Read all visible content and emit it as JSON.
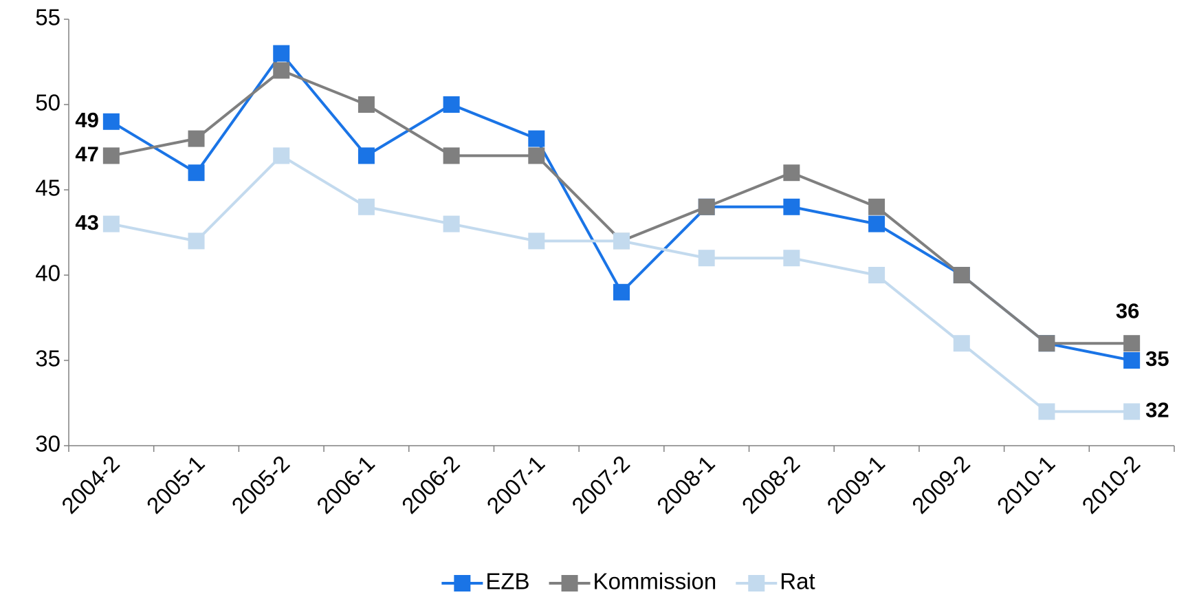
{
  "chart_data": {
    "type": "line",
    "categories": [
      "2004-2",
      "2005-1",
      "2005-2",
      "2006-1",
      "2006-2",
      "2007-1",
      "2007-2",
      "2008-1",
      "2008-2",
      "2009-1",
      "2009-2",
      "2010-1",
      "2010-2"
    ],
    "series": [
      {
        "name": "EZB",
        "color": "#1a74e6",
        "values": [
          49,
          46,
          53,
          47,
          50,
          48,
          39,
          44,
          44,
          43,
          40,
          36,
          35
        ]
      },
      {
        "name": "Kommission",
        "color": "#7f7f7f",
        "values": [
          47,
          48,
          52,
          50,
          47,
          47,
          42,
          44,
          46,
          44,
          40,
          36,
          36
        ]
      },
      {
        "name": "Rat",
        "color": "#c3daee",
        "values": [
          43,
          42,
          47,
          44,
          43,
          42,
          42,
          41,
          41,
          40,
          36,
          32,
          32
        ]
      }
    ],
    "ylim": [
      30,
      55
    ],
    "yticks": [
      30,
      35,
      40,
      45,
      50,
      55
    ],
    "grid": false,
    "legend": "bottom"
  }
}
